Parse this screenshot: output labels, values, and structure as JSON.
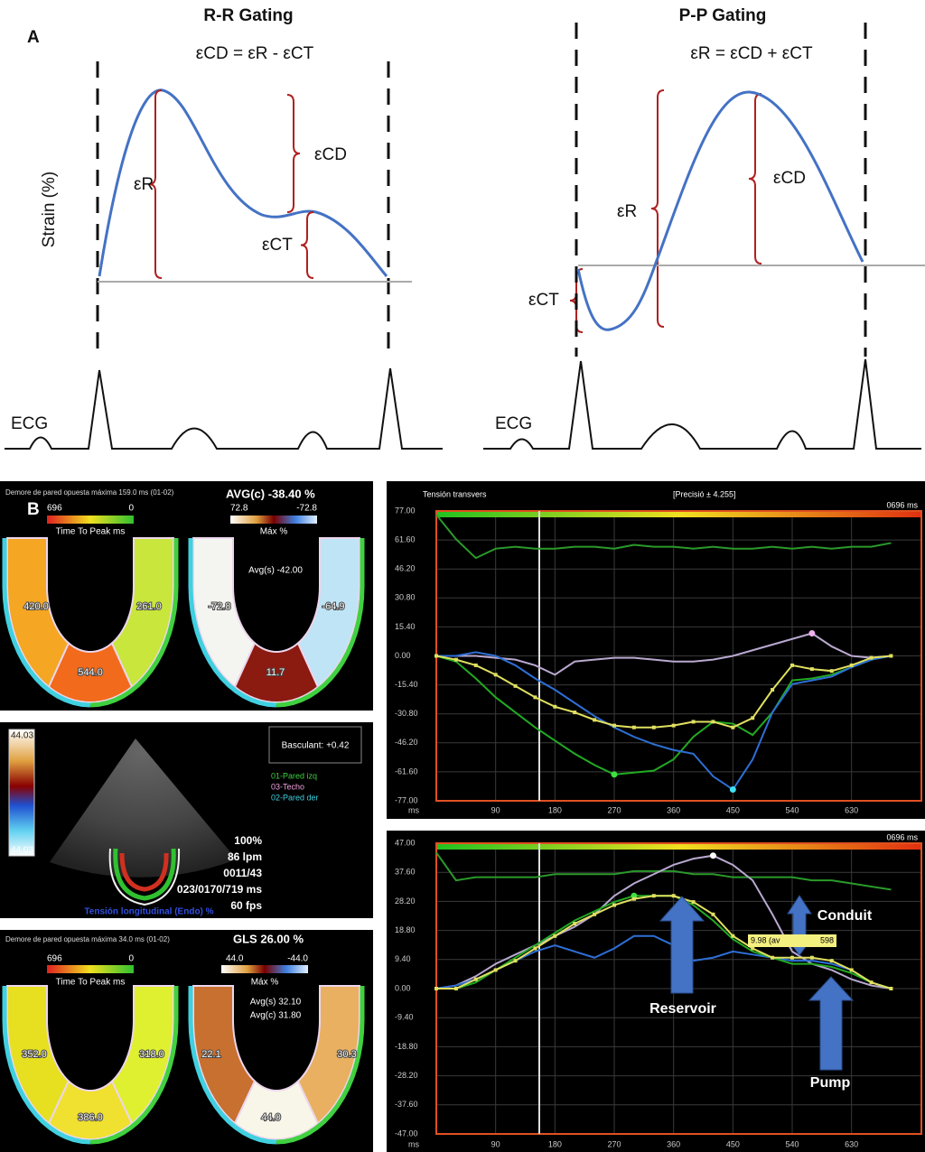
{
  "panel_a": {
    "label": "A",
    "rr": {
      "title": "R-R Gating",
      "equation": "εCD = εR - εCT",
      "y_label": "Strain (%)",
      "er": "εR",
      "ecd": "εCD",
      "ect": "εCT",
      "ecg": "ECG"
    },
    "pp": {
      "title": "P-P Gating",
      "equation": "εR = εCD + εCT",
      "er": "εR",
      "ecd": "εCD",
      "ect": "εCT",
      "ecg": "ECG"
    }
  },
  "panel_b": {
    "label": "B",
    "bullseye_1": {
      "header": "Demore de pared opuesta máxima 159.0 ms (01-02)",
      "average": "AVG(c) -38.40 %",
      "ttp_scale": {
        "max": "696",
        "min": "0",
        "label": "Time To Peak ms"
      },
      "max_scale": {
        "max": "72.8",
        "min": "-72.8",
        "label": "Máx %"
      },
      "avg_lines": [
        "Avg(s) -42.00"
      ],
      "ttp_segments": [
        "420.0",
        "544.0",
        "261.0"
      ],
      "max_segments": [
        "-72.8",
        "11.7",
        "-64.9"
      ]
    },
    "echo": {
      "scale_top": "44.03",
      "scale_bottom": "44.03",
      "tilt": "Basculant: +0.42",
      "legend": [
        "01-Pared izq",
        "03-Techo",
        "02-Pared der"
      ],
      "stats": [
        "100%",
        "86 lpm",
        "0011/43",
        "023/0170/719 ms",
        "60 fps"
      ],
      "caption": "Tensión longitudinal (Endo) %"
    },
    "bullseye_2": {
      "header": "Demore de pared opuesta máxima 34.0 ms (01-02)",
      "average": "GLS 26.00 %",
      "ttp_scale": {
        "max": "696",
        "min": "0",
        "label": "Time To Peak ms"
      },
      "max_scale": {
        "max": "44.0",
        "min": "-44.0",
        "label": "Máx %"
      },
      "avg_lines": [
        "Avg(s) 32.10",
        "Avg(c) 31.80"
      ],
      "ttp_segments": [
        "352.0",
        "386.0",
        "318.0"
      ],
      "max_segments": [
        "22.1",
        "44.0",
        "30.3"
      ]
    }
  },
  "chart_data": [
    {
      "type": "line",
      "title": "Tensión transvers",
      "subtitle": "[Precisió ± 4.255]",
      "time_label": "0696 ms",
      "x": [
        0,
        30,
        60,
        90,
        120,
        150,
        180,
        210,
        240,
        270,
        300,
        330,
        360,
        390,
        420,
        450,
        480,
        510,
        540,
        570,
        600,
        630,
        660,
        690
      ],
      "xlim": [
        0,
        736
      ],
      "ylim": [
        -77,
        77
      ],
      "xticks": [
        {
          "value": 0,
          "label": "ms"
        },
        90,
        180,
        270,
        360,
        450,
        540,
        630
      ],
      "yticks": [
        {
          "value": 77,
          "label": "77.00"
        },
        {
          "value": 61.6,
          "label": "61.60"
        },
        {
          "value": 46.2,
          "label": "46.20"
        },
        {
          "value": 30.8,
          "label": "30.80"
        },
        {
          "value": 15.4,
          "label": "15.40"
        },
        {
          "value": 0,
          "label": "0.00"
        },
        {
          "value": -15.4,
          "label": "-15.40"
        },
        {
          "value": -30.8,
          "label": "-30.80"
        },
        {
          "value": -46.2,
          "label": "-46.20"
        },
        {
          "value": -61.6,
          "label": "-61.60"
        },
        {
          "value": -77,
          "label": "-77.00"
        }
      ],
      "grid": true,
      "series": [
        {
          "color": "#2a9a2a",
          "values": [
            75,
            62,
            52,
            57,
            58,
            57,
            57,
            58,
            58,
            57,
            59,
            58,
            58,
            57,
            58,
            57,
            57,
            58,
            57,
            58,
            57,
            58,
            58,
            60
          ]
        },
        {
          "color": "#b9a9d0",
          "peak": "max",
          "peak_color": "#f0b0f0",
          "values": [
            0,
            0,
            0,
            -1,
            -2,
            -5,
            -10,
            -3,
            -2,
            -1,
            -1,
            -2,
            -3,
            -3,
            -2,
            0,
            3,
            6,
            9,
            12,
            5,
            0,
            -1,
            0
          ]
        },
        {
          "color": "#22aa22",
          "peak": "min",
          "peak_color": "#40e040",
          "values": [
            0,
            -3,
            -12,
            -22,
            -30,
            -38,
            -45,
            -52,
            -58,
            -63,
            -62,
            -61,
            -55,
            -43,
            -35,
            -36,
            -42,
            -30,
            -13,
            -12,
            -10,
            -6,
            -2,
            0
          ]
        },
        {
          "color": "#2e6fd6",
          "peak": "min",
          "peak_color": "#40e0f0",
          "values": [
            0,
            0,
            2,
            0,
            -5,
            -12,
            -18,
            -25,
            -32,
            -38,
            -43,
            -47,
            -50,
            -52,
            -64,
            -71,
            -55,
            -30,
            -15,
            -13,
            -11,
            -6,
            -2,
            0
          ]
        },
        {
          "color": "#e0e060",
          "markers": true,
          "values": [
            0,
            -2,
            -5,
            -10,
            -16,
            -22,
            -27,
            -30,
            -34,
            -37,
            -38,
            -38,
            -37,
            -35,
            -35,
            -38,
            -33,
            -18,
            -5,
            -7,
            -8,
            -5,
            -1,
            0
          ]
        }
      ]
    },
    {
      "type": "line",
      "time_label": "0696 ms",
      "annotations": [
        "Reservoir",
        "Conduit",
        "Pump"
      ],
      "tooltip": "9.98 (av",
      "tooltip_end": "598",
      "x": [
        0,
        30,
        60,
        90,
        120,
        150,
        180,
        210,
        240,
        270,
        300,
        330,
        360,
        390,
        420,
        450,
        480,
        510,
        540,
        570,
        600,
        630,
        660,
        690
      ],
      "xlim": [
        0,
        736
      ],
      "ylim": [
        -47,
        47
      ],
      "xticks": [
        {
          "value": 0,
          "label": "ms"
        },
        90,
        180,
        270,
        360,
        450,
        540,
        630
      ],
      "yticks": [
        {
          "value": 47,
          "label": "47.00"
        },
        {
          "value": 37.6,
          "label": "37.60"
        },
        {
          "value": 28.2,
          "label": "28.20"
        },
        {
          "value": 18.8,
          "label": "18.80"
        },
        {
          "value": 9.4,
          "label": "9.40"
        },
        {
          "value": 0,
          "label": "0.00"
        },
        {
          "value": -9.4,
          "label": "-9.40"
        },
        {
          "value": -18.8,
          "label": "-18.80"
        },
        {
          "value": -28.2,
          "label": "-28.20"
        },
        {
          "value": -37.6,
          "label": "-37.60"
        },
        {
          "value": -47,
          "label": "-47.00"
        }
      ],
      "grid": true,
      "series": [
        {
          "color": "#2a9a2a",
          "values": [
            44,
            35,
            36,
            36,
            36,
            36,
            37,
            37,
            37,
            37,
            38,
            38,
            38,
            37,
            37,
            36,
            36,
            36,
            36,
            35,
            35,
            34,
            33,
            32
          ]
        },
        {
          "color": "#b9a9d0",
          "peak": "max",
          "peak_color": "#ffffff",
          "values": [
            0,
            1,
            4,
            8,
            11,
            14,
            17,
            20,
            24,
            30,
            34,
            37,
            40,
            42,
            43,
            40,
            35,
            24,
            12,
            8,
            6,
            3,
            1,
            0
          ]
        },
        {
          "color": "#2e6fd6",
          "values": [
            0,
            1,
            3,
            6,
            9,
            12,
            14,
            12,
            10,
            13,
            17,
            17,
            14,
            9,
            10,
            12,
            11,
            10,
            9,
            9,
            8,
            6,
            2,
            0
          ]
        },
        {
          "color": "#22aa22",
          "peak": "max",
          "peak_color": "#40e040",
          "values": [
            0,
            0,
            2,
            6,
            10,
            14,
            18,
            22,
            25,
            28,
            30,
            30,
            30,
            27,
            22,
            16,
            12,
            10,
            8,
            8,
            7,
            5,
            2,
            0
          ]
        },
        {
          "color": "#e0e060",
          "markers": true,
          "values": [
            0,
            0,
            3,
            6,
            9,
            13,
            17,
            21,
            24,
            27,
            29,
            30,
            30,
            28,
            24,
            17,
            13,
            10,
            10,
            10,
            9,
            6,
            2,
            0
          ]
        }
      ]
    }
  ]
}
